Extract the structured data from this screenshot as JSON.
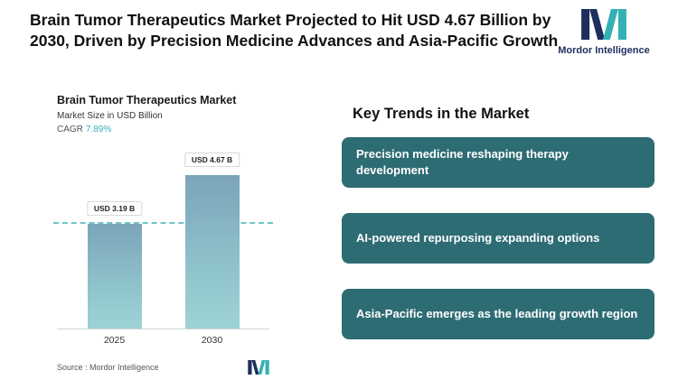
{
  "header": {
    "title": "Brain Tumor Therapeutics Market Projected to Hit USD 4.67 Billion by 2030, Driven by Precision Medicine Advances and Asia-Pacific Growth"
  },
  "brand": {
    "name": "Mordor Intelligence",
    "navy": "#1e2f5e",
    "teal": "#35b1b6"
  },
  "chart": {
    "title": "Brain Tumor Therapeutics Market",
    "subtitle": "Market Size in USD Billion",
    "cagr_label": "CAGR",
    "cagr_value": "7.89%",
    "source": "Source :  Mordor Intelligence"
  },
  "chart_data": {
    "type": "bar",
    "categories": [
      "2025",
      "2030"
    ],
    "values": [
      3.19,
      4.67
    ],
    "value_labels": [
      "USD 3.19 B",
      "USD 4.67 B"
    ],
    "title": "Brain Tumor Therapeutics Market",
    "ylabel": "Market Size in USD Billion",
    "ylim": [
      0,
      5.2
    ],
    "reference_line": 3.19,
    "bar_gradient_top": "#7ba4ba",
    "bar_gradient_bottom": "#9dd3d6",
    "reference_line_color": "#55b9be",
    "grid": false,
    "legend": false
  },
  "trends": {
    "heading": "Key Trends in the Market",
    "card_color": "#2e6c74",
    "items": [
      "Precision medicine reshaping therapy development",
      "AI-powered repurposing expanding options",
      "Asia-Pacific emerges as the leading growth region"
    ]
  }
}
